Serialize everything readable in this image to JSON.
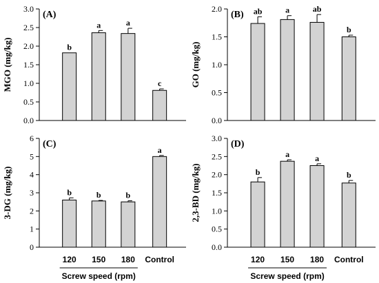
{
  "chart_data": [
    {
      "type": "bar",
      "panel_label": "(A)",
      "categories": [
        "120",
        "150",
        "180",
        "Control"
      ],
      "values": [
        1.82,
        2.36,
        2.34,
        0.81
      ],
      "errors": [
        0.0,
        0.06,
        0.14,
        0.04
      ],
      "significance": [
        "b",
        "a",
        "a",
        "c"
      ],
      "ylabel": "MGO (mg/kg)",
      "ylim": [
        0,
        3.0
      ],
      "yticks": [
        "0.0",
        "0.5",
        "1.0",
        "1.5",
        "2.0",
        "2.5",
        "3.0"
      ]
    },
    {
      "type": "bar",
      "panel_label": "(B)",
      "categories": [
        "120",
        "150",
        "180",
        "Control"
      ],
      "values": [
        1.74,
        1.81,
        1.76,
        1.5
      ],
      "errors": [
        0.12,
        0.07,
        0.14,
        0.03
      ],
      "significance": [
        "ab",
        "a",
        "ab",
        "b"
      ],
      "ylabel": "GO (mg/kg)",
      "ylim": [
        0,
        2.0
      ],
      "yticks": [
        "0.0",
        "0.5",
        "1.0",
        "1.5",
        "2.0"
      ]
    },
    {
      "type": "bar",
      "panel_label": "(C)",
      "categories": [
        "120",
        "150",
        "180",
        "Control"
      ],
      "values": [
        2.6,
        2.55,
        2.5,
        5.0
      ],
      "errors": [
        0.12,
        0.03,
        0.06,
        0.06
      ],
      "significance": [
        "b",
        "b",
        "b",
        "a"
      ],
      "ylabel": "3-DG (mg/kg)",
      "ylim": [
        0,
        6
      ],
      "yticks": [
        "0",
        "1",
        "2",
        "3",
        "4",
        "5",
        "6"
      ]
    },
    {
      "type": "bar",
      "panel_label": "(D)",
      "categories": [
        "120",
        "150",
        "180",
        "Control"
      ],
      "values": [
        1.8,
        2.37,
        2.25,
        1.77
      ],
      "errors": [
        0.12,
        0.04,
        0.05,
        0.07
      ],
      "significance": [
        "b",
        "a",
        "a",
        "b"
      ],
      "ylabel": "2,3-BD (mg/kg)",
      "ylim": [
        0,
        3.0
      ],
      "yticks": [
        "0.0",
        "0.5",
        "1.0",
        "1.5",
        "2.0",
        "2.5",
        "3.0"
      ]
    }
  ],
  "xlabel": "Screw speed (rpm)"
}
